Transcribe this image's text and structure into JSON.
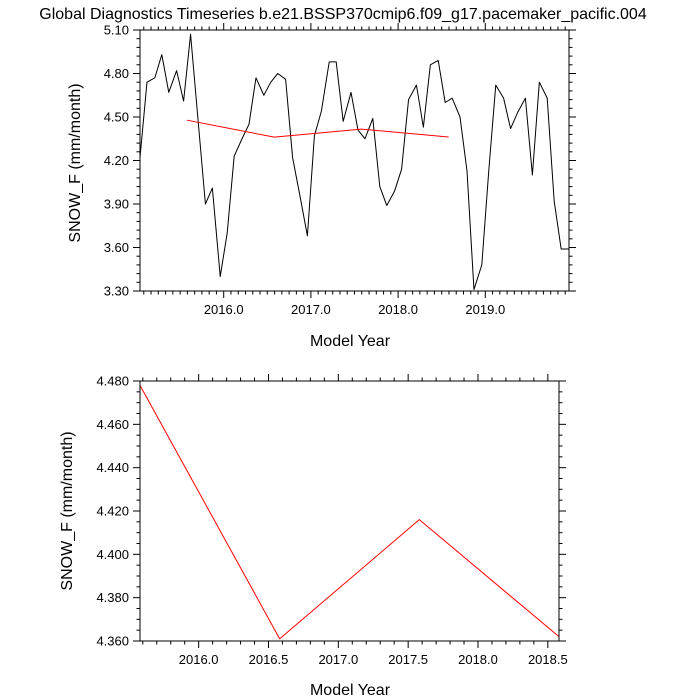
{
  "title": "Global Diagnostics Timeseries b.e21.BSSP370cmip6.f09_g17.pacemaker_pacific.004",
  "colors": {
    "monthly": "#000000",
    "annual": "#ff0000"
  },
  "chart_data": [
    {
      "type": "line",
      "xlabel": "Model Year",
      "ylabel": "SNOW_F (mm/month)",
      "xlim": [
        2015.04,
        2019.96
      ],
      "ylim": [
        3.3,
        5.1
      ],
      "xticks": [
        2016.0,
        2017.0,
        2018.0,
        2019.0
      ],
      "xtick_labels": [
        "2016.0",
        "2017.0",
        "2018.0",
        "2019.0"
      ],
      "yticks": [
        3.3,
        3.6,
        3.9,
        4.2,
        4.5,
        4.8,
        5.1
      ],
      "ytick_labels": [
        "3.30",
        "3.60",
        "3.90",
        "4.20",
        "4.50",
        "4.80",
        "5.10"
      ],
      "series": [
        {
          "color": "#000000",
          "x": [
            2015.04,
            2015.12,
            2015.21,
            2015.29,
            2015.37,
            2015.46,
            2015.54,
            2015.62,
            2015.71,
            2015.79,
            2015.87,
            2015.96,
            2016.04,
            2016.12,
            2016.21,
            2016.29,
            2016.37,
            2016.46,
            2016.54,
            2016.62,
            2016.71,
            2016.79,
            2016.87,
            2016.96,
            2017.04,
            2017.12,
            2017.21,
            2017.29,
            2017.37,
            2017.46,
            2017.54,
            2017.62,
            2017.71,
            2017.79,
            2017.87,
            2017.96,
            2018.04,
            2018.12,
            2018.21,
            2018.29,
            2018.37,
            2018.46,
            2018.54,
            2018.62,
            2018.71,
            2018.79,
            2018.87,
            2018.96,
            2019.04,
            2019.12,
            2019.21,
            2019.29,
            2019.37,
            2019.46,
            2019.54,
            2019.62,
            2019.71,
            2019.79,
            2019.87,
            2019.96
          ],
          "y": [
            4.22,
            4.74,
            4.77,
            4.93,
            4.67,
            4.82,
            4.61,
            5.07,
            4.45,
            3.9,
            4.01,
            3.4,
            3.7,
            4.23,
            4.35,
            4.45,
            4.77,
            4.65,
            4.74,
            4.8,
            4.76,
            4.22,
            3.97,
            3.68,
            4.37,
            4.54,
            4.88,
            4.88,
            4.47,
            4.67,
            4.41,
            4.35,
            4.49,
            4.02,
            3.89,
            3.99,
            4.14,
            4.62,
            4.72,
            4.43,
            4.86,
            4.89,
            4.6,
            4.63,
            4.5,
            4.13,
            3.31,
            3.48,
            4.13,
            4.72,
            4.63,
            4.42,
            4.53,
            4.63,
            4.1,
            4.74,
            4.63,
            3.92,
            3.59,
            3.59
          ]
        },
        {
          "color": "#ff0000",
          "x": [
            2015.58,
            2016.58,
            2017.58,
            2018.58
          ],
          "y": [
            4.478,
            4.361,
            4.416,
            4.362
          ]
        }
      ]
    },
    {
      "type": "line",
      "xlabel": "Model Year",
      "ylabel": "SNOW_F (mm/month)",
      "xlim": [
        2015.58,
        2018.58
      ],
      "ylim": [
        4.36,
        4.48
      ],
      "xticks": [
        2016.0,
        2016.5,
        2017.0,
        2017.5,
        2018.0,
        2018.5
      ],
      "xtick_labels": [
        "2016.0",
        "2016.5",
        "2017.0",
        "2017.5",
        "2018.0",
        "2018.5"
      ],
      "yticks": [
        4.36,
        4.38,
        4.4,
        4.42,
        4.44,
        4.46,
        4.48
      ],
      "ytick_labels": [
        "4.360",
        "4.380",
        "4.400",
        "4.420",
        "4.440",
        "4.460",
        "4.480"
      ],
      "series": [
        {
          "color": "#ff0000",
          "x": [
            2015.58,
            2016.58,
            2017.58,
            2018.58
          ],
          "y": [
            4.478,
            4.361,
            4.416,
            4.362
          ]
        }
      ]
    }
  ]
}
